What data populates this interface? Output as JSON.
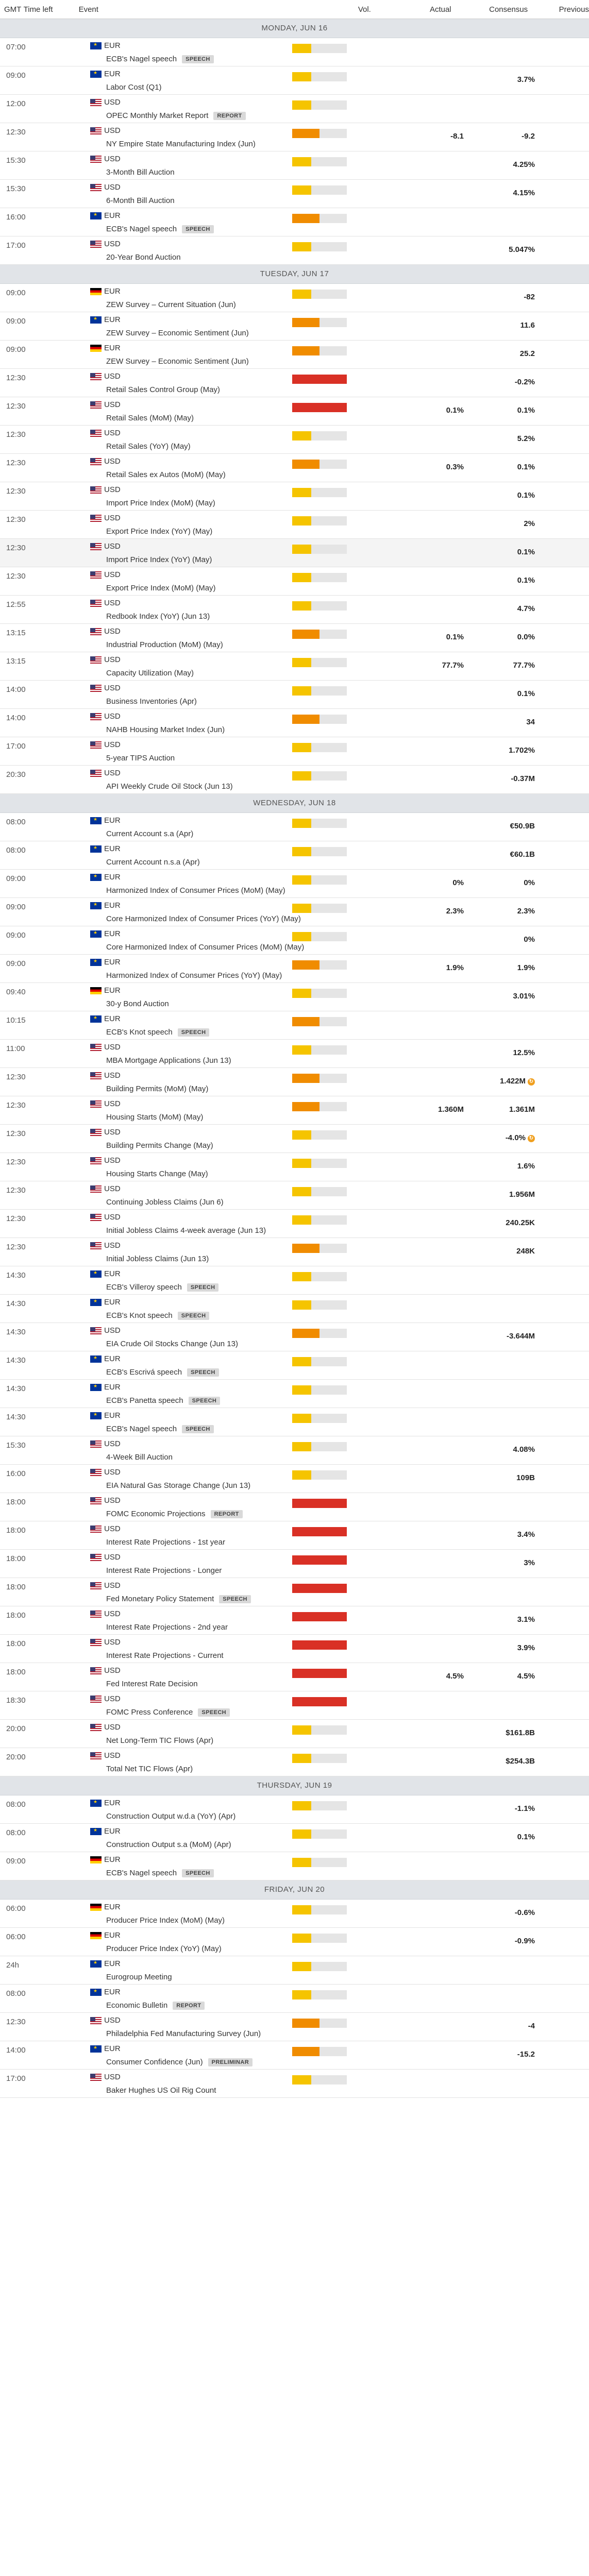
{
  "header": {
    "gmt": "GMT",
    "time_left": "Time left",
    "event": "Event",
    "vol": "Vol.",
    "actual": "Actual",
    "consensus": "Consensus",
    "previous": "Previous"
  },
  "colors": {
    "low": "#f5c400",
    "medium": "#f08c00",
    "high": "#d93025"
  },
  "days": [
    {
      "label": "MONDAY, JUN 16",
      "events": [
        {
          "time": "07:00",
          "cur": "EUR",
          "flag": "eu",
          "title": "ECB's Nagel speech",
          "tag": "SPEECH",
          "vol": "low",
          "actual": "",
          "consensus": "",
          "previous": ""
        },
        {
          "time": "09:00",
          "cur": "EUR",
          "flag": "eu",
          "title": "Labor Cost (Q1)",
          "tag": "",
          "vol": "low",
          "actual": "",
          "consensus": "",
          "previous": "3.7%"
        },
        {
          "time": "12:00",
          "cur": "USD",
          "flag": "us",
          "title": "OPEC Monthly Market Report",
          "tag": "REPORT",
          "vol": "low",
          "actual": "",
          "consensus": "",
          "previous": ""
        },
        {
          "time": "12:30",
          "cur": "USD",
          "flag": "us",
          "title": "NY Empire State Manufacturing Index (Jun)",
          "tag": "",
          "vol": "medium",
          "actual": "",
          "consensus": "-8.1",
          "previous": "-9.2"
        },
        {
          "time": "15:30",
          "cur": "USD",
          "flag": "us",
          "title": "3-Month Bill Auction",
          "tag": "",
          "vol": "low",
          "actual": "",
          "consensus": "",
          "previous": "4.25%"
        },
        {
          "time": "15:30",
          "cur": "USD",
          "flag": "us",
          "title": "6-Month Bill Auction",
          "tag": "",
          "vol": "low",
          "actual": "",
          "consensus": "",
          "previous": "4.15%"
        },
        {
          "time": "16:00",
          "cur": "EUR",
          "flag": "eu",
          "title": "ECB's Nagel speech",
          "tag": "SPEECH",
          "vol": "medium",
          "actual": "",
          "consensus": "",
          "previous": ""
        },
        {
          "time": "17:00",
          "cur": "USD",
          "flag": "us",
          "title": "20-Year Bond Auction",
          "tag": "",
          "vol": "low",
          "actual": "",
          "consensus": "",
          "previous": "5.047%"
        }
      ]
    },
    {
      "label": "TUESDAY, JUN 17",
      "events": [
        {
          "time": "09:00",
          "cur": "EUR",
          "flag": "de",
          "title": "ZEW Survey – Current Situation (Jun)",
          "tag": "",
          "vol": "low",
          "actual": "",
          "consensus": "",
          "previous": "-82"
        },
        {
          "time": "09:00",
          "cur": "EUR",
          "flag": "eu",
          "title": "ZEW Survey – Economic Sentiment (Jun)",
          "tag": "",
          "vol": "medium",
          "actual": "",
          "consensus": "",
          "previous": "11.6"
        },
        {
          "time": "09:00",
          "cur": "EUR",
          "flag": "de",
          "title": "ZEW Survey – Economic Sentiment (Jun)",
          "tag": "",
          "vol": "medium",
          "actual": "",
          "consensus": "",
          "previous": "25.2"
        },
        {
          "time": "12:30",
          "cur": "USD",
          "flag": "us",
          "title": "Retail Sales Control Group (May)",
          "tag": "",
          "vol": "high",
          "actual": "",
          "consensus": "",
          "previous": "-0.2%"
        },
        {
          "time": "12:30",
          "cur": "USD",
          "flag": "us",
          "title": "Retail Sales (MoM) (May)",
          "tag": "",
          "vol": "high",
          "actual": "",
          "consensus": "0.1%",
          "previous": "0.1%"
        },
        {
          "time": "12:30",
          "cur": "USD",
          "flag": "us",
          "title": "Retail Sales (YoY) (May)",
          "tag": "",
          "vol": "low",
          "actual": "",
          "consensus": "",
          "previous": "5.2%"
        },
        {
          "time": "12:30",
          "cur": "USD",
          "flag": "us",
          "title": "Retail Sales ex Autos (MoM) (May)",
          "tag": "",
          "vol": "medium",
          "actual": "",
          "consensus": "0.3%",
          "previous": "0.1%"
        },
        {
          "time": "12:30",
          "cur": "USD",
          "flag": "us",
          "title": "Import Price Index (MoM) (May)",
          "tag": "",
          "vol": "low",
          "actual": "",
          "consensus": "",
          "previous": "0.1%"
        },
        {
          "time": "12:30",
          "cur": "USD",
          "flag": "us",
          "title": "Export Price Index (YoY) (May)",
          "tag": "",
          "vol": "low",
          "actual": "",
          "consensus": "",
          "previous": "2%"
        },
        {
          "time": "12:30",
          "cur": "USD",
          "flag": "us",
          "title": "Import Price Index (YoY) (May)",
          "tag": "",
          "vol": "low",
          "actual": "",
          "consensus": "",
          "previous": "0.1%",
          "alt": true
        },
        {
          "time": "12:30",
          "cur": "USD",
          "flag": "us",
          "title": "Export Price Index (MoM) (May)",
          "tag": "",
          "vol": "low",
          "actual": "",
          "consensus": "",
          "previous": "0.1%"
        },
        {
          "time": "12:55",
          "cur": "USD",
          "flag": "us",
          "title": "Redbook Index (YoY) (Jun 13)",
          "tag": "",
          "vol": "low",
          "actual": "",
          "consensus": "",
          "previous": "4.7%"
        },
        {
          "time": "13:15",
          "cur": "USD",
          "flag": "us",
          "title": "Industrial Production (MoM) (May)",
          "tag": "",
          "vol": "medium",
          "actual": "",
          "consensus": "0.1%",
          "previous": "0.0%"
        },
        {
          "time": "13:15",
          "cur": "USD",
          "flag": "us",
          "title": "Capacity Utilization (May)",
          "tag": "",
          "vol": "low",
          "actual": "",
          "consensus": "77.7%",
          "previous": "77.7%"
        },
        {
          "time": "14:00",
          "cur": "USD",
          "flag": "us",
          "title": "Business Inventories (Apr)",
          "tag": "",
          "vol": "low",
          "actual": "",
          "consensus": "",
          "previous": "0.1%"
        },
        {
          "time": "14:00",
          "cur": "USD",
          "flag": "us",
          "title": "NAHB Housing Market Index (Jun)",
          "tag": "",
          "vol": "medium",
          "actual": "",
          "consensus": "",
          "previous": "34"
        },
        {
          "time": "17:00",
          "cur": "USD",
          "flag": "us",
          "title": "5-year TIPS Auction",
          "tag": "",
          "vol": "low",
          "actual": "",
          "consensus": "",
          "previous": "1.702%"
        },
        {
          "time": "20:30",
          "cur": "USD",
          "flag": "us",
          "title": "API Weekly Crude Oil Stock (Jun 13)",
          "tag": "",
          "vol": "low",
          "actual": "",
          "consensus": "",
          "previous": "-0.37M"
        }
      ]
    },
    {
      "label": "WEDNESDAY, JUN 18",
      "events": [
        {
          "time": "08:00",
          "cur": "EUR",
          "flag": "eu",
          "title": "Current Account s.a (Apr)",
          "tag": "",
          "vol": "low",
          "actual": "",
          "consensus": "",
          "previous": "€50.9B"
        },
        {
          "time": "08:00",
          "cur": "EUR",
          "flag": "eu",
          "title": "Current Account n.s.a (Apr)",
          "tag": "",
          "vol": "low",
          "actual": "",
          "consensus": "",
          "previous": "€60.1B"
        },
        {
          "time": "09:00",
          "cur": "EUR",
          "flag": "eu",
          "title": "Harmonized Index of Consumer Prices (MoM) (May)",
          "tag": "",
          "vol": "low",
          "actual": "",
          "consensus": "0%",
          "previous": "0%"
        },
        {
          "time": "09:00",
          "cur": "EUR",
          "flag": "eu",
          "title": "Core Harmonized Index of Consumer Prices (YoY) (May)",
          "tag": "",
          "vol": "low",
          "actual": "",
          "consensus": "2.3%",
          "previous": "2.3%"
        },
        {
          "time": "09:00",
          "cur": "EUR",
          "flag": "eu",
          "title": "Core Harmonized Index of Consumer Prices (MoM) (May)",
          "tag": "",
          "vol": "low",
          "actual": "",
          "consensus": "",
          "previous": "0%"
        },
        {
          "time": "09:00",
          "cur": "EUR",
          "flag": "eu",
          "title": "Harmonized Index of Consumer Prices (YoY) (May)",
          "tag": "",
          "vol": "medium",
          "actual": "",
          "consensus": "1.9%",
          "previous": "1.9%"
        },
        {
          "time": "09:40",
          "cur": "EUR",
          "flag": "de",
          "title": "30-y Bond Auction",
          "tag": "",
          "vol": "low",
          "actual": "",
          "consensus": "",
          "previous": "3.01%"
        },
        {
          "time": "10:15",
          "cur": "EUR",
          "flag": "eu",
          "title": "ECB's Knot speech",
          "tag": "SPEECH",
          "vol": "medium",
          "actual": "",
          "consensus": "",
          "previous": ""
        },
        {
          "time": "11:00",
          "cur": "USD",
          "flag": "us",
          "title": "MBA Mortgage Applications (Jun 13)",
          "tag": "",
          "vol": "low",
          "actual": "",
          "consensus": "",
          "previous": "12.5%"
        },
        {
          "time": "12:30",
          "cur": "USD",
          "flag": "us",
          "title": "Building Permits (MoM) (May)",
          "tag": "",
          "vol": "medium",
          "actual": "",
          "consensus": "",
          "previous": "1.422M",
          "rev": true
        },
        {
          "time": "12:30",
          "cur": "USD",
          "flag": "us",
          "title": "Housing Starts (MoM) (May)",
          "tag": "",
          "vol": "medium",
          "actual": "",
          "consensus": "1.360M",
          "previous": "1.361M"
        },
        {
          "time": "12:30",
          "cur": "USD",
          "flag": "us",
          "title": "Building Permits Change (May)",
          "tag": "",
          "vol": "low",
          "actual": "",
          "consensus": "",
          "previous": "-4.0%",
          "rev": true
        },
        {
          "time": "12:30",
          "cur": "USD",
          "flag": "us",
          "title": "Housing Starts Change (May)",
          "tag": "",
          "vol": "low",
          "actual": "",
          "consensus": "",
          "previous": "1.6%"
        },
        {
          "time": "12:30",
          "cur": "USD",
          "flag": "us",
          "title": "Continuing Jobless Claims (Jun 6)",
          "tag": "",
          "vol": "low",
          "actual": "",
          "consensus": "",
          "previous": "1.956M"
        },
        {
          "time": "12:30",
          "cur": "USD",
          "flag": "us",
          "title": "Initial Jobless Claims 4-week average (Jun 13)",
          "tag": "",
          "vol": "low",
          "actual": "",
          "consensus": "",
          "previous": "240.25K"
        },
        {
          "time": "12:30",
          "cur": "USD",
          "flag": "us",
          "title": "Initial Jobless Claims (Jun 13)",
          "tag": "",
          "vol": "medium",
          "actual": "",
          "consensus": "",
          "previous": "248K"
        },
        {
          "time": "14:30",
          "cur": "EUR",
          "flag": "eu",
          "title": "ECB's Villeroy speech",
          "tag": "SPEECH",
          "vol": "low",
          "actual": "",
          "consensus": "",
          "previous": ""
        },
        {
          "time": "14:30",
          "cur": "EUR",
          "flag": "eu",
          "title": "ECB's Knot speech",
          "tag": "SPEECH",
          "vol": "low",
          "actual": "",
          "consensus": "",
          "previous": ""
        },
        {
          "time": "14:30",
          "cur": "USD",
          "flag": "us",
          "title": "EIA Crude Oil Stocks Change (Jun 13)",
          "tag": "",
          "vol": "medium",
          "actual": "",
          "consensus": "",
          "previous": "-3.644M"
        },
        {
          "time": "14:30",
          "cur": "EUR",
          "flag": "eu",
          "title": "ECB's Escrivá speech",
          "tag": "SPEECH",
          "vol": "low",
          "actual": "",
          "consensus": "",
          "previous": ""
        },
        {
          "time": "14:30",
          "cur": "EUR",
          "flag": "eu",
          "title": "ECB's Panetta speech",
          "tag": "SPEECH",
          "vol": "low",
          "actual": "",
          "consensus": "",
          "previous": ""
        },
        {
          "time": "14:30",
          "cur": "EUR",
          "flag": "eu",
          "title": "ECB's Nagel speech",
          "tag": "SPEECH",
          "vol": "low",
          "actual": "",
          "consensus": "",
          "previous": ""
        },
        {
          "time": "15:30",
          "cur": "USD",
          "flag": "us",
          "title": "4-Week Bill Auction",
          "tag": "",
          "vol": "low",
          "actual": "",
          "consensus": "",
          "previous": "4.08%"
        },
        {
          "time": "16:00",
          "cur": "USD",
          "flag": "us",
          "title": "EIA Natural Gas Storage Change (Jun 13)",
          "tag": "",
          "vol": "low",
          "actual": "",
          "consensus": "",
          "previous": "109B"
        },
        {
          "time": "18:00",
          "cur": "USD",
          "flag": "us",
          "title": "FOMC Economic Projections",
          "tag": "REPORT",
          "vol": "high",
          "actual": "",
          "consensus": "",
          "previous": ""
        },
        {
          "time": "18:00",
          "cur": "USD",
          "flag": "us",
          "title": "Interest Rate Projections - 1st year",
          "tag": "",
          "vol": "high",
          "actual": "",
          "consensus": "",
          "previous": "3.4%"
        },
        {
          "time": "18:00",
          "cur": "USD",
          "flag": "us",
          "title": "Interest Rate Projections - Longer",
          "tag": "",
          "vol": "high",
          "actual": "",
          "consensus": "",
          "previous": "3%"
        },
        {
          "time": "18:00",
          "cur": "USD",
          "flag": "us",
          "title": "Fed Monetary Policy Statement",
          "tag": "SPEECH",
          "vol": "high",
          "actual": "",
          "consensus": "",
          "previous": ""
        },
        {
          "time": "18:00",
          "cur": "USD",
          "flag": "us",
          "title": "Interest Rate Projections - 2nd year",
          "tag": "",
          "vol": "high",
          "actual": "",
          "consensus": "",
          "previous": "3.1%"
        },
        {
          "time": "18:00",
          "cur": "USD",
          "flag": "us",
          "title": "Interest Rate Projections - Current",
          "tag": "",
          "vol": "high",
          "actual": "",
          "consensus": "",
          "previous": "3.9%"
        },
        {
          "time": "18:00",
          "cur": "USD",
          "flag": "us",
          "title": "Fed Interest Rate Decision",
          "tag": "",
          "vol": "high",
          "actual": "",
          "consensus": "4.5%",
          "previous": "4.5%"
        },
        {
          "time": "18:30",
          "cur": "USD",
          "flag": "us",
          "title": "FOMC Press Conference",
          "tag": "SPEECH",
          "vol": "high",
          "actual": "",
          "consensus": "",
          "previous": ""
        },
        {
          "time": "20:00",
          "cur": "USD",
          "flag": "us",
          "title": "Net Long-Term TIC Flows (Apr)",
          "tag": "",
          "vol": "low",
          "actual": "",
          "consensus": "",
          "previous": "$161.8B"
        },
        {
          "time": "20:00",
          "cur": "USD",
          "flag": "us",
          "title": "Total Net TIC Flows (Apr)",
          "tag": "",
          "vol": "low",
          "actual": "",
          "consensus": "",
          "previous": "$254.3B"
        }
      ]
    },
    {
      "label": "THURSDAY, JUN 19",
      "events": [
        {
          "time": "08:00",
          "cur": "EUR",
          "flag": "eu",
          "title": "Construction Output w.d.a (YoY) (Apr)",
          "tag": "",
          "vol": "low",
          "actual": "",
          "consensus": "",
          "previous": "-1.1%"
        },
        {
          "time": "08:00",
          "cur": "EUR",
          "flag": "eu",
          "title": "Construction Output s.a (MoM) (Apr)",
          "tag": "",
          "vol": "low",
          "actual": "",
          "consensus": "",
          "previous": "0.1%"
        },
        {
          "time": "09:00",
          "cur": "EUR",
          "flag": "de",
          "title": "ECB's Nagel speech",
          "tag": "SPEECH",
          "vol": "low",
          "actual": "",
          "consensus": "",
          "previous": ""
        }
      ]
    },
    {
      "label": "FRIDAY, JUN 20",
      "events": [
        {
          "time": "06:00",
          "cur": "EUR",
          "flag": "de",
          "title": "Producer Price Index (MoM) (May)",
          "tag": "",
          "vol": "low",
          "actual": "",
          "consensus": "",
          "previous": "-0.6%"
        },
        {
          "time": "06:00",
          "cur": "EUR",
          "flag": "de",
          "title": "Producer Price Index (YoY) (May)",
          "tag": "",
          "vol": "low",
          "actual": "",
          "consensus": "",
          "previous": "-0.9%"
        },
        {
          "time": "24h",
          "cur": "EUR",
          "flag": "eu",
          "title": "Eurogroup Meeting",
          "tag": "",
          "vol": "low",
          "actual": "",
          "consensus": "",
          "previous": ""
        },
        {
          "time": "08:00",
          "cur": "EUR",
          "flag": "eu",
          "title": "Economic Bulletin",
          "tag": "REPORT",
          "vol": "low",
          "actual": "",
          "consensus": "",
          "previous": ""
        },
        {
          "time": "12:30",
          "cur": "USD",
          "flag": "us",
          "title": "Philadelphia Fed Manufacturing Survey (Jun)",
          "tag": "",
          "vol": "medium",
          "actual": "",
          "consensus": "",
          "previous": "-4"
        },
        {
          "time": "14:00",
          "cur": "EUR",
          "flag": "eu",
          "title": "Consumer Confidence (Jun)",
          "tag": "PRELIMINAR",
          "vol": "medium",
          "actual": "",
          "consensus": "",
          "previous": "-15.2"
        },
        {
          "time": "17:00",
          "cur": "USD",
          "flag": "us",
          "title": "Baker Hughes US Oil Rig Count",
          "tag": "",
          "vol": "low",
          "actual": "",
          "consensus": "",
          "previous": ""
        }
      ]
    }
  ]
}
